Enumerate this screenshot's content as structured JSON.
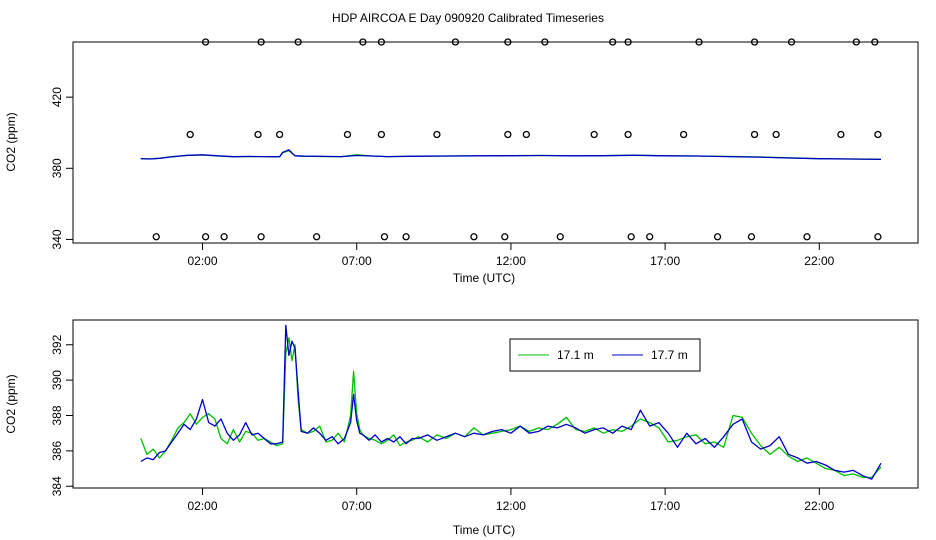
{
  "title": "HDP AIRCOA E  Day 090920  Calibrated Timeseries",
  "chart_data": [
    {
      "type": "line",
      "xlabel": "Time (UTC)",
      "ylabel": "CO2 (ppm)",
      "x_ticks": [
        {
          "value": 2,
          "label": "02:00"
        },
        {
          "value": 7,
          "label": "07:00"
        },
        {
          "value": 12,
          "label": "12:00"
        },
        {
          "value": 17,
          "label": "17:00"
        },
        {
          "value": 22,
          "label": "22:00"
        }
      ],
      "y_ticks": [
        340,
        380,
        420
      ],
      "xlim": [
        -2.2,
        25.2
      ],
      "ylim": [
        338,
        451
      ],
      "grid": false,
      "series": [
        {
          "color": "#00c000",
          "x": [
            0,
            0.3,
            0.6,
            1.0,
            1.5,
            2.0,
            2.5,
            3.0,
            3.5,
            4.0,
            4.5,
            4.6,
            4.8,
            5.0,
            5.3,
            6.0,
            6.5,
            7.0,
            7.5,
            8,
            9,
            10,
            11,
            12,
            13,
            14,
            15,
            16,
            17,
            18,
            19,
            20,
            21,
            22,
            23,
            24
          ],
          "values": [
            385.5,
            385.3,
            385.6,
            386.5,
            387.2,
            387.5,
            386.9,
            386.5,
            386.6,
            386.6,
            386.4,
            388.7,
            389.9,
            387.0,
            386.8,
            386.6,
            386.5,
            387.6,
            386.9,
            386.6,
            386.8,
            386.9,
            387.0,
            387.1,
            387.2,
            387.0,
            387.1,
            387.4,
            387.0,
            386.9,
            386.7,
            386.4,
            385.9,
            385.4,
            385.2,
            385.1
          ]
        },
        {
          "color": "#0000c8",
          "x": [
            0,
            0.3,
            0.6,
            1.0,
            1.5,
            2.0,
            2.5,
            3.0,
            3.5,
            4.0,
            4.5,
            4.6,
            4.8,
            5.0,
            5.3,
            6.0,
            6.5,
            7.0,
            7.5,
            8,
            9,
            10,
            11,
            12,
            13,
            14,
            15,
            16,
            17,
            18,
            19,
            20,
            21,
            22,
            23,
            24
          ],
          "values": [
            385.4,
            385.2,
            385.6,
            386.4,
            387.3,
            387.6,
            387.0,
            386.5,
            386.7,
            386.6,
            386.5,
            389.0,
            390.4,
            387.0,
            386.8,
            386.7,
            386.6,
            387.2,
            386.9,
            386.6,
            386.8,
            386.9,
            387.0,
            387.1,
            387.2,
            387.0,
            387.1,
            387.3,
            387.0,
            386.9,
            386.6,
            386.3,
            385.8,
            385.4,
            385.2,
            385.0
          ]
        }
      ],
      "calibration_points": {
        "x": [
          0.5,
          2.1,
          2.7,
          3.9,
          5.7,
          7.9,
          8.6,
          10.8,
          11.8,
          13.6,
          15.9,
          16.5,
          18.7,
          19.8,
          21.6,
          23.9,
          1.6,
          3.8,
          4.5,
          6.7,
          7.8,
          9.6,
          11.9,
          12.5,
          14.7,
          15.8,
          17.6,
          19.9,
          20.6,
          22.7,
          23.9,
          2.1,
          3.9,
          5.1,
          7.2,
          7.8,
          10.2,
          11.9,
          13.1,
          15.3,
          15.8,
          18.1,
          19.9,
          21.1,
          23.2,
          23.8
        ],
        "values": [
          341.5,
          341.5,
          341.5,
          341.5,
          341.5,
          341.5,
          341.5,
          341.5,
          341.5,
          341.5,
          341.5,
          341.5,
          341.5,
          341.5,
          341.5,
          341.5,
          399,
          399,
          399,
          399,
          399,
          399,
          399,
          399,
          399,
          399,
          399,
          399,
          399,
          399,
          399,
          451,
          451,
          451,
          451,
          451,
          451,
          451,
          451,
          451,
          451,
          451,
          451,
          451,
          451,
          451
        ]
      }
    },
    {
      "type": "line",
      "xlabel": "Time (UTC)",
      "ylabel": "CO2 (ppm)",
      "x_ticks": [
        {
          "value": 2,
          "label": "02:00"
        },
        {
          "value": 7,
          "label": "07:00"
        },
        {
          "value": 12,
          "label": "12:00"
        },
        {
          "value": 17,
          "label": "17:00"
        },
        {
          "value": 22,
          "label": "22:00"
        }
      ],
      "y_ticks": [
        384,
        386,
        388,
        390,
        392
      ],
      "xlim": [
        -2.2,
        25.2
      ],
      "ylim": [
        383.9,
        393.4
      ],
      "grid": false,
      "legend": {
        "placement": "top-center"
      },
      "series": [
        {
          "name": "17.1 m",
          "color": "#00c000",
          "x": [
            0,
            0.2,
            0.4,
            0.6,
            0.8,
            1.0,
            1.2,
            1.4,
            1.6,
            1.8,
            2.0,
            2.2,
            2.4,
            2.6,
            2.8,
            3.0,
            3.2,
            3.4,
            3.6,
            3.8,
            4.0,
            4.2,
            4.4,
            4.6,
            4.7,
            4.8,
            4.9,
            5.0,
            5.1,
            5.2,
            5.4,
            5.6,
            5.8,
            6.0,
            6.2,
            6.4,
            6.6,
            6.8,
            6.9,
            7.0,
            7.1,
            7.2,
            7.4,
            7.6,
            7.8,
            8.0,
            8.2,
            8.4,
            8.6,
            8.8,
            9.0,
            9.3,
            9.6,
            9.9,
            10.2,
            10.5,
            10.8,
            11.1,
            11.4,
            11.7,
            12.0,
            12.3,
            12.6,
            12.9,
            13.2,
            13.5,
            13.8,
            14.1,
            14.4,
            14.7,
            15.0,
            15.3,
            15.6,
            15.9,
            16.2,
            16.5,
            16.8,
            17.1,
            17.4,
            17.7,
            18.0,
            18.3,
            18.6,
            18.9,
            19.2,
            19.5,
            19.8,
            20.1,
            20.4,
            20.7,
            21.0,
            21.3,
            21.6,
            21.9,
            22.2,
            22.5,
            22.8,
            23.1,
            23.4,
            23.7,
            24.0
          ],
          "values": [
            386.7,
            385.8,
            386.1,
            385.6,
            386.0,
            386.6,
            387.3,
            387.6,
            388.1,
            387.5,
            387.9,
            388.1,
            387.8,
            386.7,
            386.4,
            387.2,
            386.5,
            387.1,
            387.0,
            386.6,
            386.7,
            386.5,
            386.3,
            386.4,
            391.5,
            392.4,
            391.1,
            392.0,
            388.9,
            387.2,
            387.0,
            387.1,
            387.4,
            386.5,
            386.6,
            387.0,
            386.5,
            388.0,
            390.5,
            388.1,
            387.2,
            386.9,
            386.7,
            386.6,
            386.4,
            386.6,
            386.9,
            386.3,
            386.5,
            386.6,
            386.8,
            386.5,
            386.9,
            386.7,
            387.0,
            386.8,
            387.3,
            386.9,
            387.0,
            387.1,
            387.2,
            387.4,
            387.1,
            387.3,
            387.2,
            387.5,
            387.9,
            387.2,
            387.1,
            387.3,
            387.0,
            387.2,
            387.1,
            387.4,
            387.8,
            387.6,
            387.3,
            386.5,
            386.6,
            386.8,
            386.9,
            386.4,
            386.5,
            386.2,
            388.0,
            387.9,
            387.0,
            386.3,
            385.8,
            386.2,
            385.7,
            385.4,
            385.6,
            385.3,
            385.0,
            384.9,
            384.6,
            384.7,
            384.5,
            384.5,
            385.1
          ]
        },
        {
          "name": "17.7 m",
          "color": "#0000c8",
          "x": [
            0,
            0.2,
            0.4,
            0.6,
            0.8,
            1.0,
            1.2,
            1.4,
            1.6,
            1.8,
            2.0,
            2.2,
            2.4,
            2.6,
            2.8,
            3.0,
            3.2,
            3.4,
            3.6,
            3.8,
            4.0,
            4.2,
            4.4,
            4.6,
            4.7,
            4.8,
            4.9,
            5.0,
            5.1,
            5.2,
            5.4,
            5.6,
            5.8,
            6.0,
            6.2,
            6.4,
            6.6,
            6.8,
            6.9,
            7.0,
            7.1,
            7.2,
            7.4,
            7.6,
            7.8,
            8.0,
            8.2,
            8.4,
            8.6,
            8.8,
            9.0,
            9.3,
            9.6,
            9.9,
            10.2,
            10.5,
            10.8,
            11.1,
            11.4,
            11.7,
            12.0,
            12.3,
            12.6,
            12.9,
            13.2,
            13.5,
            13.8,
            14.1,
            14.4,
            14.7,
            15.0,
            15.3,
            15.6,
            15.9,
            16.2,
            16.5,
            16.8,
            17.1,
            17.4,
            17.7,
            18.0,
            18.3,
            18.6,
            18.9,
            19.2,
            19.5,
            19.8,
            20.1,
            20.4,
            20.7,
            21.0,
            21.3,
            21.6,
            21.9,
            22.2,
            22.5,
            22.8,
            23.1,
            23.4,
            23.7,
            24.0
          ],
          "values": [
            385.4,
            385.6,
            385.5,
            385.9,
            386.0,
            386.5,
            387.0,
            387.5,
            387.2,
            387.8,
            388.9,
            387.6,
            387.4,
            387.8,
            387.0,
            386.6,
            386.9,
            387.6,
            386.9,
            387.0,
            386.7,
            386.4,
            386.4,
            386.5,
            393.1,
            391.4,
            392.2,
            391.8,
            389.4,
            387.1,
            387.0,
            387.3,
            387.0,
            386.6,
            386.8,
            386.4,
            386.7,
            387.6,
            389.2,
            387.7,
            387.0,
            386.9,
            386.6,
            386.9,
            386.5,
            386.7,
            386.5,
            386.8,
            386.4,
            386.7,
            386.7,
            386.9,
            386.6,
            386.8,
            387.0,
            386.8,
            387.0,
            386.9,
            387.1,
            387.2,
            387.0,
            387.4,
            387.0,
            387.1,
            387.4,
            387.3,
            387.5,
            387.3,
            387.0,
            387.2,
            387.3,
            387.0,
            387.4,
            387.2,
            388.3,
            387.4,
            387.6,
            387.0,
            386.2,
            387.0,
            386.4,
            386.7,
            386.2,
            386.8,
            387.5,
            387.8,
            386.5,
            386.1,
            386.3,
            386.8,
            385.8,
            385.6,
            385.3,
            385.4,
            385.2,
            384.9,
            384.8,
            384.9,
            384.6,
            384.4,
            385.3
          ]
        }
      ]
    }
  ]
}
